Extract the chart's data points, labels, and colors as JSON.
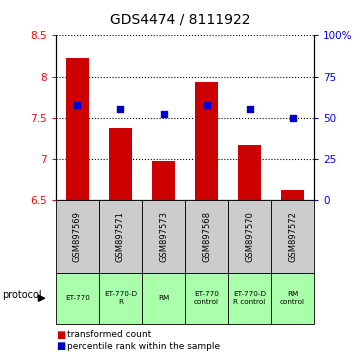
{
  "title": "GDS4474 / 8111922",
  "samples": [
    "GSM897569",
    "GSM897571",
    "GSM897573",
    "GSM897568",
    "GSM897570",
    "GSM897572"
  ],
  "bar_values": [
    8.22,
    7.37,
    6.97,
    7.93,
    7.17,
    6.62
  ],
  "bar_bottom": 6.5,
  "percentile_values": [
    58,
    55,
    52,
    58,
    55,
    50
  ],
  "ylim_left": [
    6.5,
    8.5
  ],
  "ylim_right": [
    0,
    100
  ],
  "yticks_left": [
    6.5,
    7.0,
    7.5,
    8.0,
    8.5
  ],
  "ytick_labels_left": [
    "6.5",
    "7",
    "7.5",
    "8",
    "8.5"
  ],
  "yticks_right": [
    0,
    25,
    50,
    75,
    100
  ],
  "ytick_labels_right": [
    "0",
    "25",
    "50",
    "75",
    "100%"
  ],
  "bar_color": "#cc0000",
  "dot_color": "#0000cc",
  "protocols": [
    "ET-770",
    "ET-770-D\nR",
    "RM",
    "ET-770\ncontrol",
    "ET-770-D\nR control",
    "RM\ncontrol"
  ],
  "protocol_bg": "#aaffaa",
  "sample_bg": "#cccccc",
  "legend_bar_label": "transformed count",
  "legend_dot_label": "percentile rank within the sample",
  "protocol_label": "protocol"
}
